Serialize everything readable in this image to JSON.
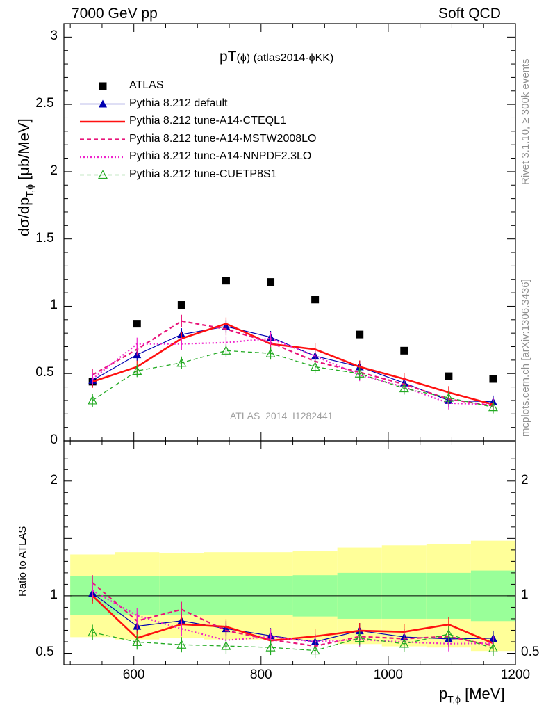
{
  "header": {
    "left_text": "7000 GeV pp",
    "right_text": "Soft QCD"
  },
  "side_text": {
    "rivet": "Rivet 3.1.10, ≥ 300k events",
    "mcplots": "mcplots.cern.ch [arXiv:1306.3436]"
  },
  "chart_data": {
    "type": "scatter",
    "title_main": "pT",
    "title_paren": "(ϕ)",
    "title_extra": " (atlas2014-ϕKK)",
    "analysis_tag": "ATLAS_2014_I1282441",
    "xlabel_main": "p",
    "xlabel_sub": "T,ϕ",
    "xlabel_unit": " [MeV]",
    "ylabel_main": "dσ/dp",
    "ylabel_sub": "T,ϕ",
    "ylabel_unit": " [μb/MeV]",
    "ratio_ylabel": "Ratio to ATLAS",
    "xlim": [
      490,
      1200
    ],
    "xticks": [
      "600",
      "800",
      "1000",
      "1200"
    ],
    "top_ylim": [
      0,
      3.1
    ],
    "top_yticks": [
      "0",
      "0.5",
      "1",
      "1.5",
      "2",
      "2.5",
      "3"
    ],
    "ratio_ylim": [
      0.4,
      2.35
    ],
    "ratio_yticks": [
      "0.5",
      "1",
      "2"
    ],
    "legend_position": "top-left",
    "x": [
      535,
      605,
      675,
      745,
      815,
      885,
      955,
      1025,
      1095,
      1165
    ],
    "bin_edges": [
      500,
      570,
      640,
      710,
      780,
      850,
      920,
      990,
      1060,
      1130,
      1200
    ],
    "band_outer": [
      0.36,
      0.38,
      0.37,
      0.38,
      0.38,
      0.39,
      0.42,
      0.44,
      0.45,
      0.48
    ],
    "band_inner": [
      0.17,
      0.17,
      0.17,
      0.17,
      0.17,
      0.18,
      0.2,
      0.2,
      0.2,
      0.22
    ],
    "series": [
      {
        "name": "ATLAS",
        "color": "#000000",
        "marker": "square",
        "line": "none",
        "values": [
          0.44,
          0.87,
          1.01,
          1.19,
          1.18,
          1.05,
          0.79,
          0.67,
          0.48,
          0.46
        ]
      },
      {
        "name": "Pythia 8.212 default",
        "color": "#0000b0",
        "marker": "triangle",
        "line": "solid-thin",
        "values": [
          0.45,
          0.64,
          0.79,
          0.85,
          0.77,
          0.63,
          0.55,
          0.43,
          0.3,
          0.29
        ]
      },
      {
        "name": "Pythia 8.212 tune-A14-CTEQL1",
        "color": "#ff1010",
        "marker": "none",
        "line": "solid-thick",
        "values": [
          0.44,
          0.55,
          0.76,
          0.87,
          0.72,
          0.68,
          0.55,
          0.46,
          0.36,
          0.27
        ]
      },
      {
        "name": "Pythia 8.212 tune-A14-MSTW2008LO",
        "color": "#e8157a",
        "marker": "none",
        "line": "dashed",
        "values": [
          0.49,
          0.68,
          0.89,
          0.83,
          0.73,
          0.59,
          0.51,
          0.42,
          0.31,
          0.26
        ]
      },
      {
        "name": "Pythia 8.212 tune-A14-NNPDF2.3LO",
        "color": "#ee22cc",
        "marker": "none",
        "line": "dotted",
        "values": [
          0.46,
          0.72,
          0.72,
          0.73,
          0.76,
          0.63,
          0.49,
          0.4,
          0.28,
          0.27
        ]
      },
      {
        "name": "Pythia 8.212 tune-CUETP8S1",
        "color": "#22aa22",
        "marker": "open-triangle",
        "line": "dashed",
        "values": [
          0.3,
          0.52,
          0.58,
          0.67,
          0.65,
          0.55,
          0.5,
          0.39,
          0.32,
          0.25
        ]
      }
    ]
  }
}
